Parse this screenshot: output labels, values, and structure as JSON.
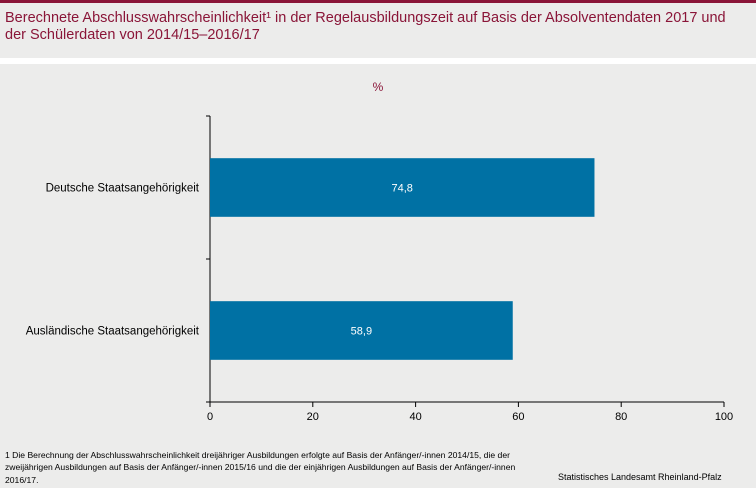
{
  "title": "Berechnete Abschlusswahrscheinlichkeit¹ in der Regelausbildungszeit auf Basis der Absolventendaten 2017 und der Schülerdaten von 2014/15–2016/17",
  "footnote": "1 Die Berechnung der Abschlusswahrscheinlichkeit dreijähriger Ausbildungen erfolgte auf Basis der Anfänger/-innen 2014/15, die der zweijährigen Ausbildungen auf Basis der Anfänger/-innen 2015/16 und die der einjährigen Ausbildungen auf Basis der Anfänger/-innen 2016/17.",
  "source": "Statistisches Landesamt Rheinland-Pfalz",
  "colors": {
    "bar": "#0071a4",
    "accent": "#8a1538",
    "background": "#ececeb"
  },
  "chart_data": {
    "type": "bar",
    "orientation": "horizontal",
    "unit": "%",
    "categories": [
      "Deutsche Staatsangehörigkeit",
      "Ausländische Staatsangehörigkeit"
    ],
    "values": [
      74.8,
      58.9
    ],
    "value_labels": [
      "74,8",
      "58,9"
    ],
    "xlim": [
      0,
      100
    ],
    "xticks": [
      0,
      20,
      40,
      60,
      80,
      100
    ],
    "grid": false,
    "legend": "none"
  }
}
